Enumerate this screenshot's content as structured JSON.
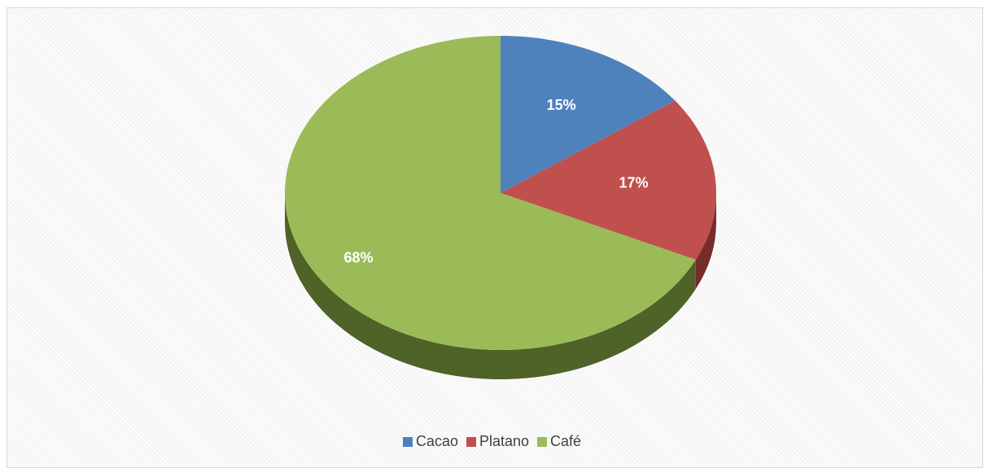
{
  "chart_data": {
    "type": "pie",
    "variant": "3d",
    "categories": [
      "Cacao",
      "Platano",
      "Café"
    ],
    "values": [
      15,
      17,
      68
    ],
    "data_labels": [
      "15%",
      "17%",
      "68%"
    ],
    "colors": [
      "#4f81bd",
      "#c0504d",
      "#9bbb59"
    ],
    "side_colors": [
      "#2c4d75",
      "#772c2a",
      "#4f6228"
    ],
    "legend_position": "bottom",
    "start_angle_deg": 0,
    "direction": "clockwise"
  }
}
